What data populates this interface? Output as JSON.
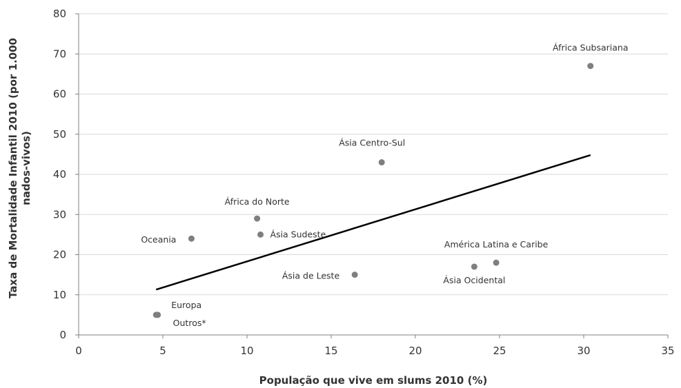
{
  "chart_data": {
    "type": "scatter",
    "title": "",
    "xlabel": "População que vive em slums 2010 (%)",
    "ylabel_line1": "Taxa de Mortalidade Infantil 2010 (por 1.000",
    "ylabel_line2": "nados-vivos)",
    "xlim": [
      0,
      35
    ],
    "ylim": [
      0,
      80
    ],
    "x_ticks": [
      0,
      5,
      10,
      15,
      20,
      25,
      30,
      35
    ],
    "y_ticks": [
      0,
      10,
      20,
      30,
      40,
      50,
      60,
      70,
      80
    ],
    "grid": "horizontal",
    "points": [
      {
        "label": "África Subsariana",
        "x": 30.4,
        "y": 67
      },
      {
        "label": "Ásia Centro-Sul",
        "x": 18.0,
        "y": 43
      },
      {
        "label": "África do Norte",
        "x": 10.6,
        "y": 29
      },
      {
        "label": "Ásia Sudeste",
        "x": 10.8,
        "y": 25
      },
      {
        "label": "Oceania",
        "x": 6.7,
        "y": 24
      },
      {
        "label": "América Latina e Caribe",
        "x": 24.8,
        "y": 18
      },
      {
        "label": "Ásia Ocidental",
        "x": 23.5,
        "y": 17
      },
      {
        "label": "Ásia de Leste",
        "x": 16.4,
        "y": 15
      },
      {
        "label": "Europa",
        "x": 4.6,
        "y": 5
      },
      {
        "label": "Outros*",
        "x": 4.7,
        "y": 5
      }
    ],
    "trendline": {
      "x": [
        4.6,
        30.4
      ],
      "y": [
        11.3,
        44.8
      ]
    }
  }
}
